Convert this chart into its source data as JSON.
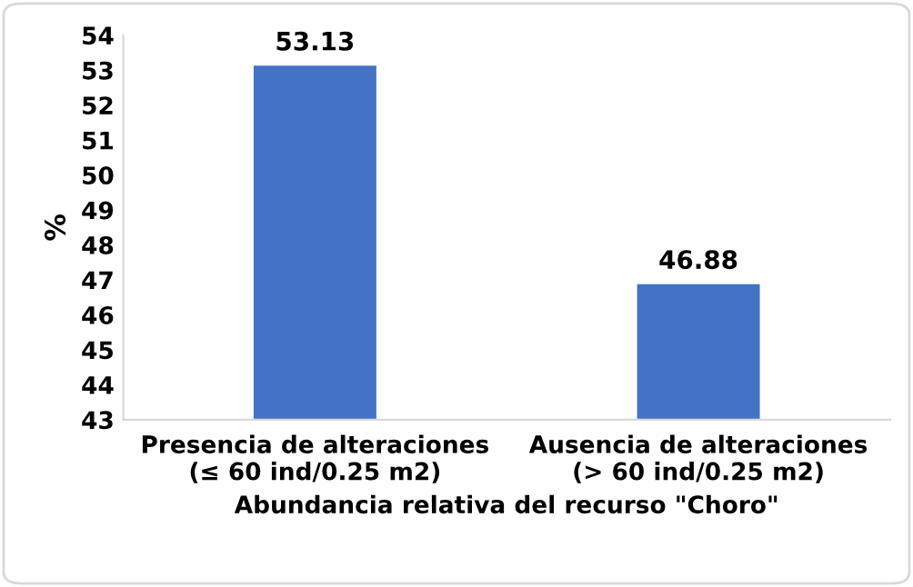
{
  "chart_data": {
    "type": "bar",
    "xlabel": "Abundancia relativa del recurso \"Choro\"",
    "ylabel": "%",
    "categories": [
      "Presencia de alteraciones\n(≤ 60 ind/0.25 m2)",
      "Ausencia de alteraciones\n(> 60 ind/0.25 m2)"
    ],
    "values": [
      53.13,
      46.88
    ],
    "color": "#4472c4",
    "ylim": [
      43,
      54
    ],
    "yticks": [
      43,
      44,
      45,
      46,
      47,
      48,
      49,
      50,
      51,
      52,
      53,
      54
    ],
    "grid": false,
    "data_labels": true
  }
}
